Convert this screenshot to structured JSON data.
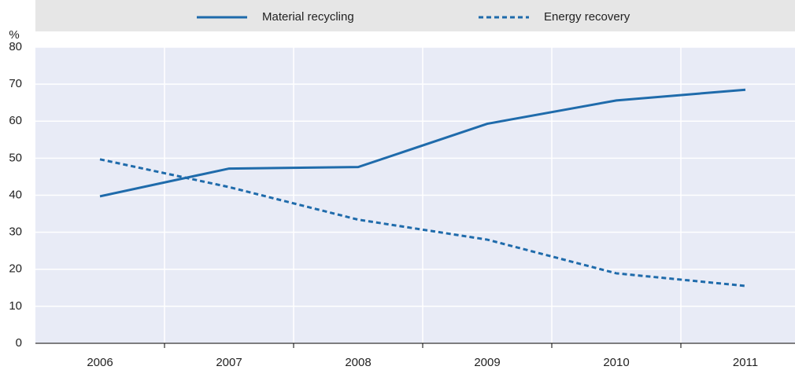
{
  "chart_data": {
    "type": "line",
    "ylabel": "%",
    "categories": [
      "2006",
      "2007",
      "2008",
      "2009",
      "2010",
      "2011"
    ],
    "series": [
      {
        "name": "Material recycling",
        "color": "#1f6bab",
        "dash": false,
        "values": [
          39.7,
          47.2,
          47.6,
          59.3,
          65.6,
          68.5
        ]
      },
      {
        "name": "Energy recovery",
        "color": "#1f6bab",
        "dash": true,
        "values": [
          49.7,
          42.2,
          33.4,
          28.0,
          18.9,
          15.5
        ]
      }
    ],
    "ylim": [
      0,
      80
    ],
    "yticks": [
      0,
      10,
      20,
      30,
      40,
      50,
      60,
      70,
      80
    ],
    "grid": true,
    "legend": "top"
  }
}
